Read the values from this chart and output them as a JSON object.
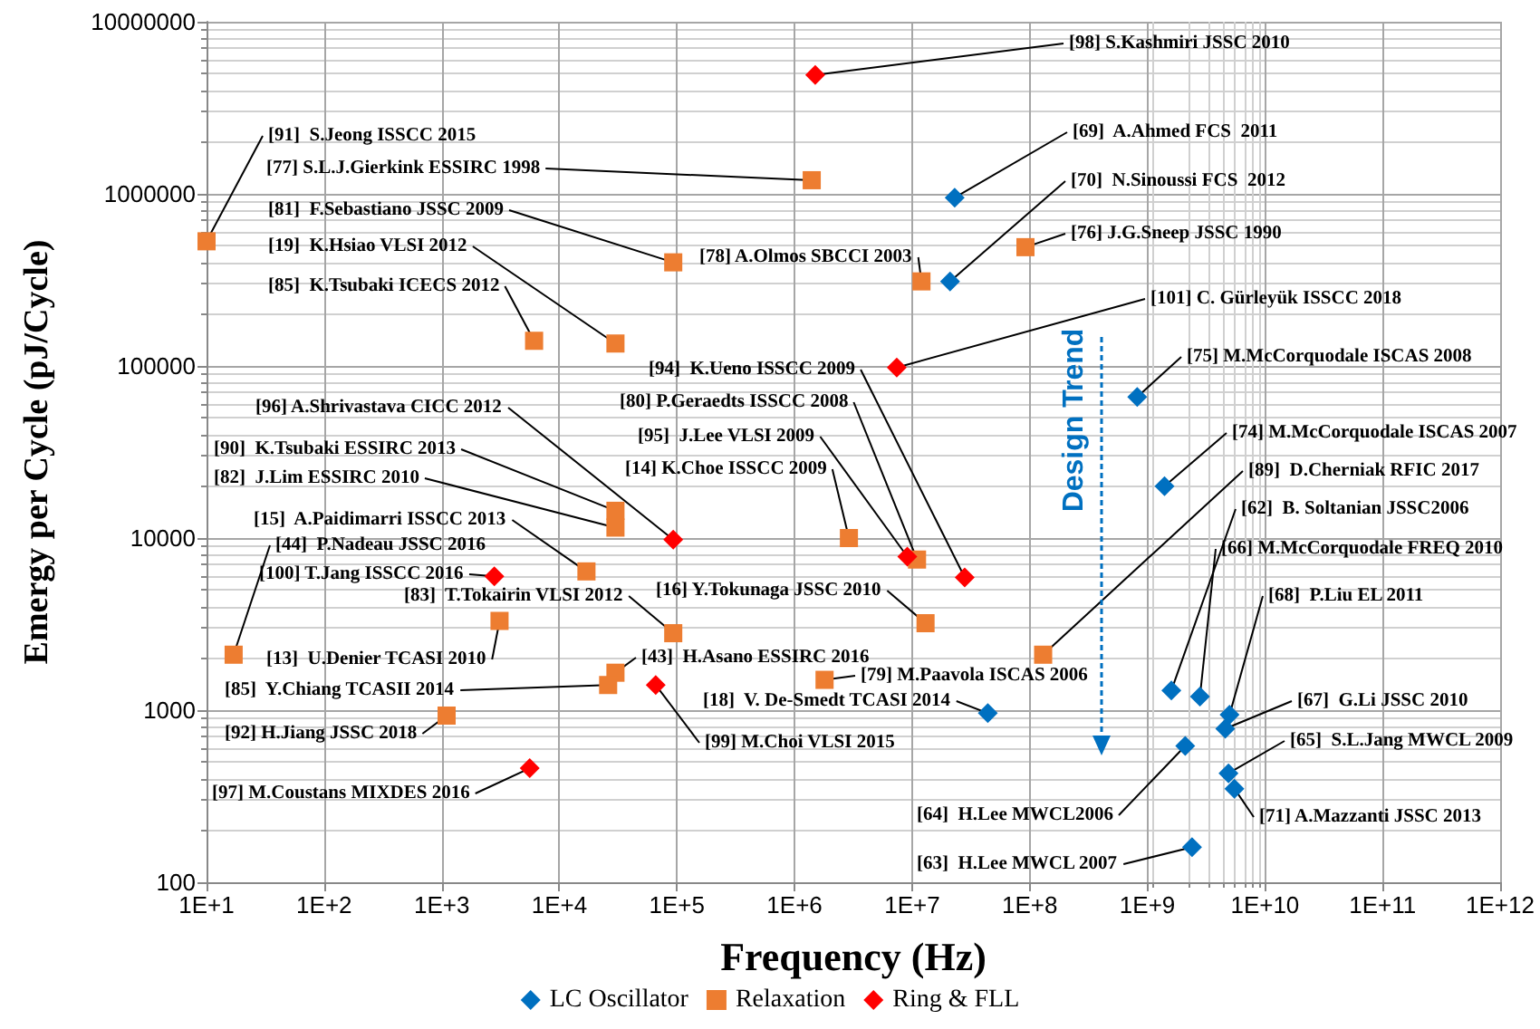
{
  "chart_data": {
    "type": "scatter",
    "xlabel": "Frequency (Hz)",
    "ylabel": "Emergy per Cycle (pJ/Cycle)",
    "xlim": [
      10,
      1000000000000
    ],
    "ylim": [
      100,
      10000000
    ],
    "xticks": [
      {
        "value": 10,
        "label": "1E+1"
      },
      {
        "value": 100,
        "label": "1E+2"
      },
      {
        "value": 1000,
        "label": "1E+3"
      },
      {
        "value": 10000,
        "label": "1E+4"
      },
      {
        "value": 100000,
        "label": "1E+5"
      },
      {
        "value": 1000000,
        "label": "1E+6"
      },
      {
        "value": 10000000,
        "label": "1E+7"
      },
      {
        "value": 100000000,
        "label": "1E+8"
      },
      {
        "value": 1000000000,
        "label": "1E+9"
      },
      {
        "value": 10000000000,
        "label": "1E+10"
      },
      {
        "value": 100000000000,
        "label": "1E+11"
      },
      {
        "value": 1000000000000,
        "label": "1E+12"
      }
    ],
    "yticks": [
      100,
      1000,
      10000,
      100000,
      1000000,
      10000000
    ],
    "log": "xy",
    "grid": true,
    "legend": "bottom",
    "series": [
      {
        "name": "LC Oscillator",
        "color": "#0070c0",
        "marker": "diamond",
        "x": [
          23000000,
          21000000,
          820000000,
          1400000000,
          1600000000,
          2800000000,
          5000000000,
          4600000000,
          44000000,
          2100000000,
          4900000000,
          5500000000,
          2400000000
        ],
        "values": [
          950000,
          310000,
          66000,
          20000,
          1300,
          1200,
          940,
          780,
          960,
          620,
          430,
          350,
          160
        ]
      },
      {
        "name": "Relaxation",
        "color": "#ed7d31",
        "marker": "square",
        "x": [
          10,
          1400000,
          93000,
          12000000,
          92000000,
          6100,
          30000,
          30000,
          30000,
          17000,
          17,
          3100,
          93000,
          30000,
          26000,
          1100,
          2900000,
          11000000,
          13000000,
          1800000,
          130000000
        ],
        "values": [
          530000,
          1200000,
          400000,
          310000,
          490000,
          140000,
          135000,
          14400,
          11500,
          6400,
          2100,
          3300,
          2800,
          1650,
          1400,
          930,
          10000,
          7500,
          3200,
          1500,
          2100
        ]
      },
      {
        "name": "Ring & FLL",
        "color": "#ff0000",
        "marker": "diamond",
        "x": [
          1500000,
          7400000,
          93000,
          2800,
          66000,
          5600,
          28000000,
          9100000
        ],
        "values": [
          4900000,
          98000,
          9800,
          6000,
          1400,
          460,
          5900,
          7800
        ]
      }
    ],
    "annotations": [
      {
        "text": "[98] S.Kashmiri JSSC 2010",
        "x": 1500000,
        "y": 4900000
      },
      {
        "text": "[91]  S.Jeong ISSCC 2015",
        "x": 10,
        "y": 530000
      },
      {
        "text": "[77] S.L.J.Gierkink ESSIRC 1998",
        "x": 1400000,
        "y": 1200000
      },
      {
        "text": "[81]  F.Sebastiano JSSC 2009",
        "x": 93000,
        "y": 400000
      },
      {
        "text": "[19]  K.Hsiao VLSI 2012",
        "x": 30000,
        "y": 135000
      },
      {
        "text": "[85]  K.Tsubaki ICECS 2012",
        "x": 6100,
        "y": 140000
      },
      {
        "text": "[78] A.Olmos SBCCI 2003",
        "x": 12000000,
        "y": 310000
      },
      {
        "text": "[69]  A.Ahmed FCS  2011",
        "x": 23000000,
        "y": 950000
      },
      {
        "text": "[70]  N.Sinoussi FCS  2012",
        "x": 21000000,
        "y": 310000
      },
      {
        "text": "[76] J.G.Sneep JSSC 1990",
        "x": 92000000,
        "y": 490000
      },
      {
        "text": "[101] C. Gürleyük ISSCC 2018",
        "x": 7400000,
        "y": 98000
      },
      {
        "text": "[75] M.McCorquodale ISCAS 2008",
        "x": 820000000,
        "y": 66000
      },
      {
        "text": "[96] A.Shrivastava CICC 2012",
        "x": 93000,
        "y": 9800
      },
      {
        "text": "[90]  K.Tsubaki ESSIRC 2013",
        "x": 30000,
        "y": 14400
      },
      {
        "text": "[82]  J.Lim ESSIRC 2010",
        "x": 30000,
        "y": 11500
      },
      {
        "text": "[15]  A.Paidimarri ISSCC 2013",
        "x": 17000,
        "y": 6400
      },
      {
        "text": "[44]  P.Nadeau JSSC 2016",
        "x": 17,
        "y": 2100
      },
      {
        "text": "[100] T.Jang ISSCC 2016",
        "x": 2800,
        "y": 6000
      },
      {
        "text": "[83]  T.Tokairin VLSI 2012",
        "x": 93000,
        "y": 2800
      },
      {
        "text": "[13]  U.Denier TCASI 2010",
        "x": 3100,
        "y": 3300
      },
      {
        "text": "[85]  Y.Chiang TCASII 2014",
        "x": 26000,
        "y": 1400
      },
      {
        "text": "[92] H.Jiang JSSC 2018",
        "x": 1100,
        "y": 930
      },
      {
        "text": "[97] M.Coustans MIXDES 2016",
        "x": 5600,
        "y": 460
      },
      {
        "text": "[94]  K.Ueno ISSCC 2009",
        "x": 28000000,
        "y": 5900
      },
      {
        "text": "[80] P.Geraedts ISSCC 2008",
        "x": 11000000,
        "y": 7500
      },
      {
        "text": "[95]  J.Lee VLSI 2009",
        "x": 9100000,
        "y": 7800
      },
      {
        "text": "[14] K.Choe ISSCC 2009",
        "x": 2900000,
        "y": 10000
      },
      {
        "text": "[16] Y.Tokunaga JSSC 2010",
        "x": 13000000,
        "y": 3200
      },
      {
        "text": "[43]  H.Asano ESSIRC 2016",
        "x": 30000,
        "y": 1650
      },
      {
        "text": "[79] M.Paavola ISCAS 2006",
        "x": 1800000,
        "y": 1500
      },
      {
        "text": "[18]  V. De-Smedt TCASI 2014",
        "x": 44000000,
        "y": 960
      },
      {
        "text": "[99] M.Choi VLSI 2015",
        "x": 66000,
        "y": 1400
      },
      {
        "text": "[64]  H.Lee MWCL2006",
        "x": 2100000000,
        "y": 620
      },
      {
        "text": "[63]  H.Lee MWCL 2007",
        "x": 2400000000,
        "y": 160
      },
      {
        "text": "[74] M.McCorquodale ISCAS 2007",
        "x": 1400000000,
        "y": 20000
      },
      {
        "text": "[89]  D.Cherniak RFIC 2017",
        "x": 130000000,
        "y": 2100
      },
      {
        "text": "[62]  B. Soltanian JSSC2006",
        "x": 1600000000,
        "y": 1300
      },
      {
        "text": "[66] M.McCorquodale FREQ 2010",
        "x": 2800000000,
        "y": 1200
      },
      {
        "text": "[68]  P.Liu EL 2011",
        "x": 5000000000,
        "y": 940
      },
      {
        "text": "[67]  G.Li JSSC 2010",
        "x": 4600000000,
        "y": 780
      },
      {
        "text": "[65]  S.L.Jang MWCL 2009",
        "x": 4900000000,
        "y": 430
      },
      {
        "text": "[71] A.Mazzanti JSSC 2013",
        "x": 5500000000,
        "y": 350
      },
      "Design Trend"
    ]
  }
}
